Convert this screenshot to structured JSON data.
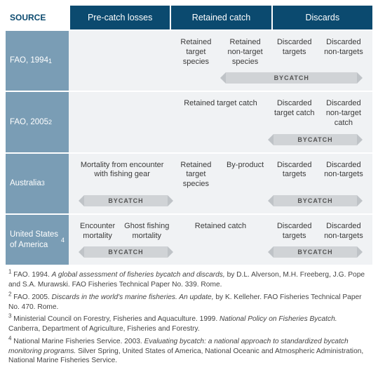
{
  "colors": {
    "header_bg": "#0b4a6f",
    "row_label_bg": "#7a9db5",
    "body_bg": "#f0f2f4",
    "bar_bg": "#d0d3d6",
    "arrow_bg": "#bfc3c7",
    "text": "#3a3a3a"
  },
  "header": {
    "source": "SOURCE",
    "precatch": "Pre-catch losses",
    "retained": "Retained catch",
    "discards": "Discards"
  },
  "rows": [
    {
      "label_html": "FAO, 1994<sup>1</sup>",
      "cells": [
        "",
        "",
        "Retained target species",
        "Retained non-target species",
        "Discarded targets",
        "Discarded non-targets"
      ],
      "bars": [
        {
          "start": 4,
          "span": 4,
          "label": "BYCATCH"
        }
      ]
    },
    {
      "label_html": "FAO, 2005<sup>2</sup>",
      "cells": [
        "",
        "",
        "Retained target catch",
        "",
        "Discarded target catch",
        "Discarded non-target catch"
      ],
      "cell_spans": {
        "2": 2
      },
      "bars": [
        {
          "start": 5,
          "span": 2,
          "label": "BYCATCH"
        }
      ]
    },
    {
      "label_html": "Australia<sup>3</sup>",
      "cells": [
        "Mortality from encounter with fishing gear",
        "",
        "Retained target species",
        "By-product",
        "Discarded targets",
        "Discarded non-targets"
      ],
      "cell_spans": {
        "0": 2
      },
      "bars": [
        {
          "start": 1,
          "span": 2,
          "label": "BYCATCH"
        },
        {
          "start": 5,
          "span": 2,
          "label": "BYCATCH"
        }
      ]
    },
    {
      "label_html": "United States of America<sup>4</sup>",
      "cells": [
        "Encounter mortality",
        "Ghost fishing mortality",
        "Retained catch",
        "",
        "Discarded targets",
        "Discarded non-targets"
      ],
      "cell_spans": {
        "2": 2
      },
      "bars": [
        {
          "start": 1,
          "span": 2,
          "label": "BYCATCH"
        },
        {
          "start": 5,
          "span": 2,
          "label": "BYCATCH"
        }
      ]
    }
  ],
  "footnotes": [
    "<sup>1</sup> FAO. 1994. <em>A global assessment of fisheries bycatch and discards,</em> by D.L. Alverson, M.H. Freeberg, J.G. Pope and S.A. Murawski. FAO Fisheries Technical Paper No. 339. Rome.",
    "<sup>2</sup> FAO. 2005. <em>Discards in the world's marine fisheries. An update,</em> by K. Kelleher. FAO Fisheries Technical Paper No. 470. Rome.",
    "<sup>3</sup> Ministerial Council on Forestry, Fisheries and Aquaculture. 1999. <em>National Policy on Fisheries Bycatch.</em> Canberra, Department of Agriculture, Fisheries and Forestry.",
    "<sup>4</sup> National Marine Fisheries Service. 2003. <em>Evaluating bycatch: a national approach to standardized bycatch monitoring programs.</em> Silver Spring, United States of America, National Oceanic and Atmospheric Administration, National Marine Fisheries Service."
  ]
}
